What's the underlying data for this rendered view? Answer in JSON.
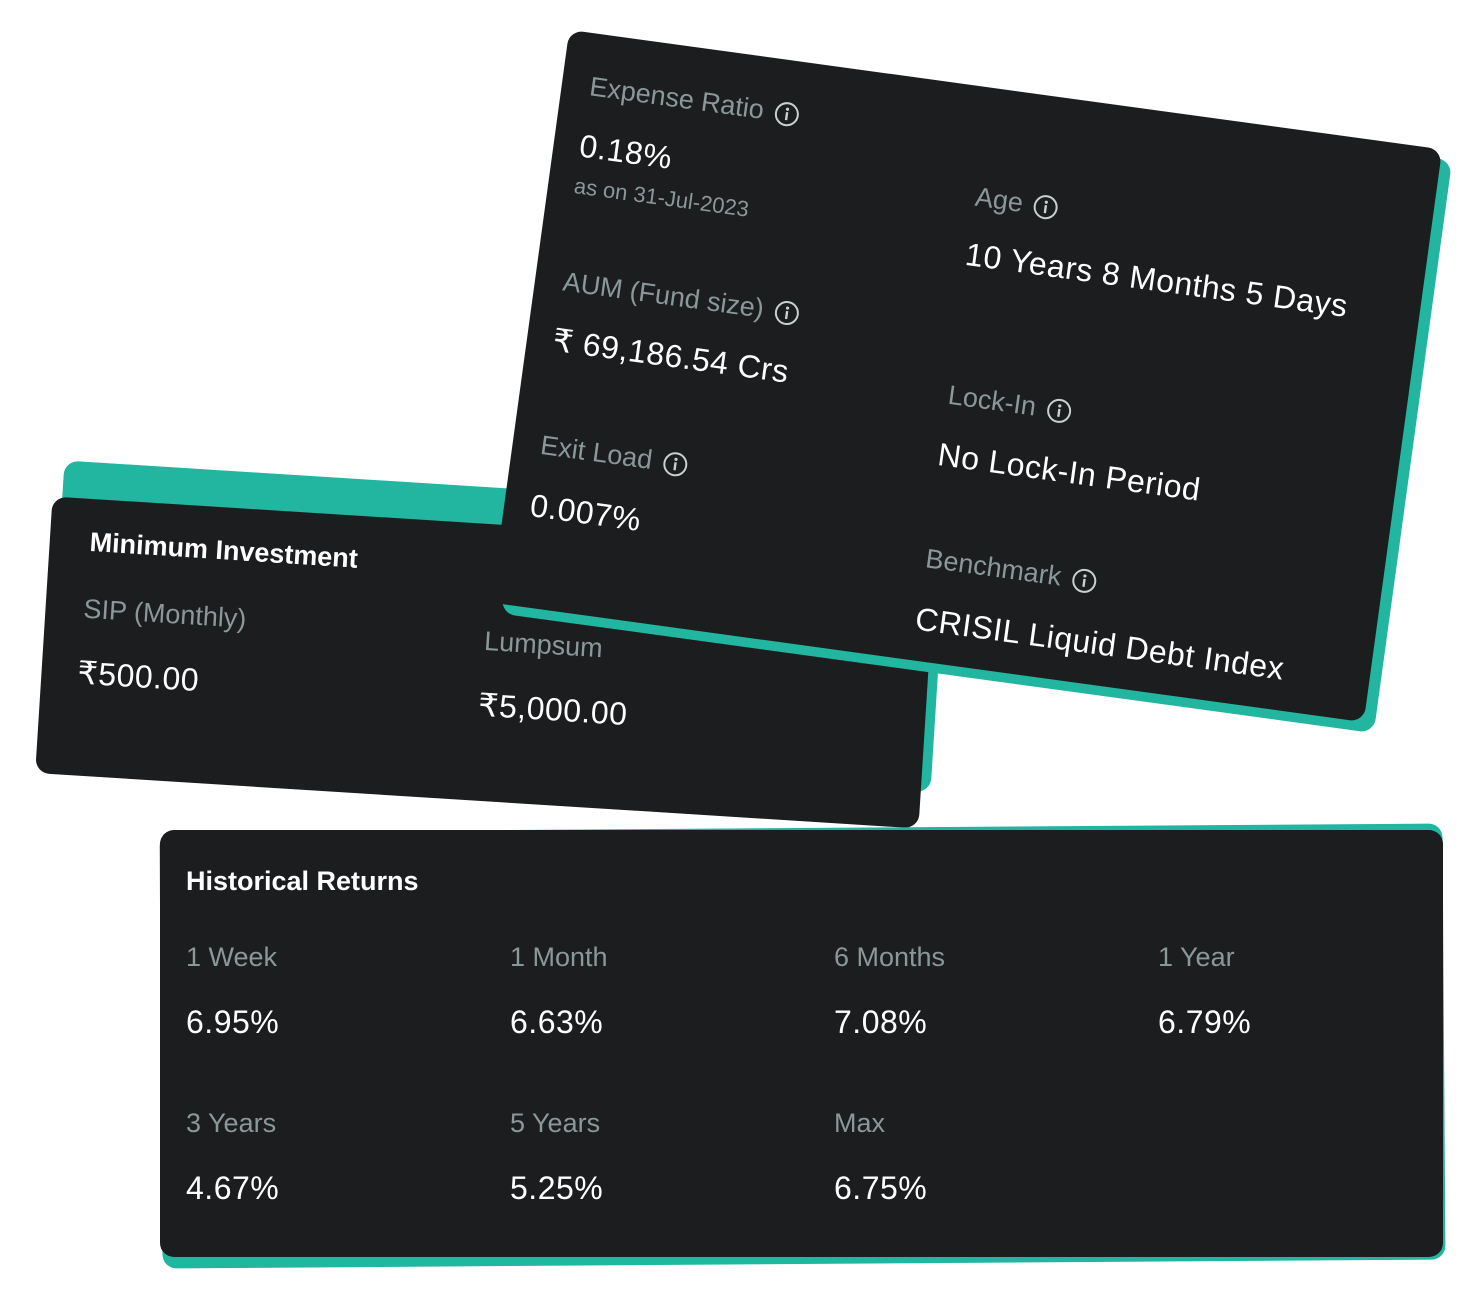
{
  "fund_details": {
    "items": [
      {
        "label": "Expense Ratio",
        "value": "0.18%",
        "note": "as on 31-Jul-2023"
      },
      {
        "label": "Age",
        "value": "10 Years 8 Months 5 Days"
      },
      {
        "label": "AUM (Fund size)",
        "value": "₹ 69,186.54 Crs"
      },
      {
        "label": "Lock-In",
        "value": "No Lock-In Period"
      },
      {
        "label": "Exit Load",
        "value": "0.007%"
      },
      {
        "label": "Benchmark",
        "value": "CRISIL Liquid Debt Index"
      }
    ]
  },
  "minimum_investment": {
    "title": "Minimum Investment",
    "items": [
      {
        "label": "SIP (Monthly)",
        "value": "₹500.00"
      },
      {
        "label": "Lumpsum",
        "value": "₹5,000.00"
      }
    ]
  },
  "historical_returns": {
    "title": "Historical Returns",
    "items": [
      {
        "label": "1 Week",
        "value": "6.95%"
      },
      {
        "label": "1 Month",
        "value": "6.63%"
      },
      {
        "label": "6 Months",
        "value": "7.08%"
      },
      {
        "label": "1 Year",
        "value": "6.79%"
      },
      {
        "label": "3 Years",
        "value": "4.67%"
      },
      {
        "label": "5 Years",
        "value": "5.25%"
      },
      {
        "label": "Max",
        "value": "6.75%"
      }
    ]
  }
}
